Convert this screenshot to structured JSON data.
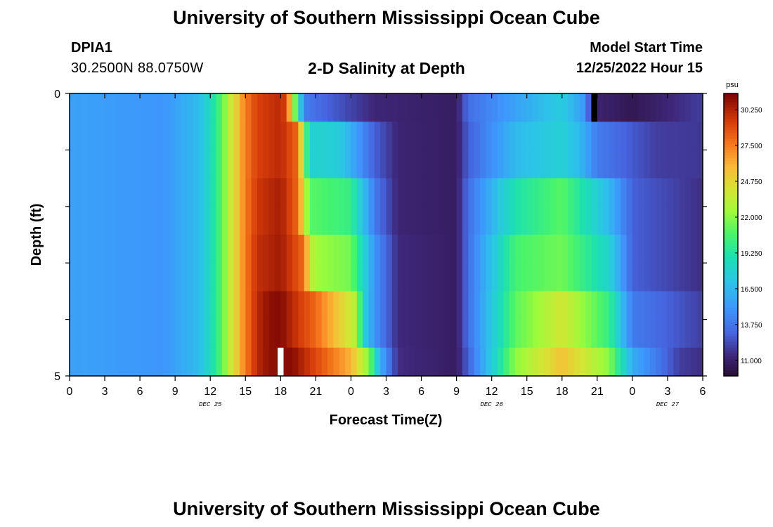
{
  "header": {
    "title": "University of Southern Mississippi Ocean Cube",
    "station_id": "DPIA1",
    "station_coords": "30.2500N  88.0750W",
    "subtitle": "2-D Salinity at Depth",
    "start_label": "Model Start Time",
    "start_value": "12/25/2022 Hour 15"
  },
  "footer": {
    "title": "University of Southern Mississippi Ocean Cube"
  },
  "chart_data": {
    "type": "heatmap",
    "title": "2-D Salinity at Depth",
    "xlabel": "Forecast Time(Z)",
    "ylabel": "Depth (ft)",
    "x_tick_labels": [
      "0",
      "3",
      "6",
      "9",
      "12",
      "15",
      "18",
      "21",
      "0",
      "3",
      "6",
      "9",
      "12",
      "15",
      "18",
      "21",
      "0",
      "3",
      "6"
    ],
    "x_day_labels": [
      "DEC 25",
      "DEC 26",
      "DEC 27"
    ],
    "x_range_hours": [
      0,
      54
    ],
    "y_tick_labels": [
      "0",
      "5"
    ],
    "ylim": [
      0,
      5
    ],
    "y_inverted": true,
    "colorbar": {
      "unit": "psu",
      "tick_labels": [
        "30.250",
        "27.500",
        "24.750",
        "22.000",
        "19.250",
        "16.500",
        "13.750",
        "11.000"
      ],
      "min": 9.8,
      "max": 31.5
    },
    "depth_layers_ft": [
      0.25,
      0.75,
      1.25,
      1.75,
      2.25,
      2.75,
      3.25,
      3.75,
      4.25,
      4.75
    ],
    "layer_groups": [
      {
        "rows": [
          0
        ],
        "anchors": [
          [
            0,
            15.5
          ],
          [
            8,
            15
          ],
          [
            11,
            16.6
          ],
          [
            12,
            18.5
          ],
          [
            13,
            21
          ],
          [
            14,
            24.5
          ],
          [
            15,
            27.5
          ],
          [
            16,
            29.2
          ],
          [
            18,
            30
          ],
          [
            18.5,
            29
          ],
          [
            19,
            24
          ],
          [
            19.5,
            19
          ],
          [
            20,
            14
          ],
          [
            22,
            13
          ],
          [
            26,
            11.3
          ],
          [
            33,
            10.8
          ],
          [
            34,
            13.5
          ],
          [
            38,
            15.5
          ],
          [
            42,
            17.5
          ],
          [
            44,
            15
          ],
          [
            44.5,
            11.2
          ],
          [
            48,
            10.5
          ],
          [
            52,
            11.5
          ],
          [
            54,
            12
          ]
        ]
      },
      {
        "rows": [
          1,
          2
        ],
        "anchors": [
          [
            0,
            15.5
          ],
          [
            8,
            15
          ],
          [
            11,
            16.6
          ],
          [
            12,
            18.5
          ],
          [
            13,
            21
          ],
          [
            14,
            24.5
          ],
          [
            15,
            27.5
          ],
          [
            16,
            29.2
          ],
          [
            18,
            30
          ],
          [
            19.5,
            28
          ],
          [
            20,
            22
          ],
          [
            20.5,
            18
          ],
          [
            23,
            17.5
          ],
          [
            26,
            13
          ],
          [
            28,
            11.2
          ],
          [
            33,
            10.8
          ],
          [
            34,
            13
          ],
          [
            38,
            16.5
          ],
          [
            42,
            17.8
          ],
          [
            43.5,
            16.5
          ],
          [
            45,
            14
          ],
          [
            50,
            12
          ],
          [
            54,
            11.8
          ]
        ]
      },
      {
        "rows": [
          3,
          4
        ],
        "anchors": [
          [
            0,
            15.5
          ],
          [
            8,
            15
          ],
          [
            11,
            16.6
          ],
          [
            12,
            18.5
          ],
          [
            13,
            21
          ],
          [
            14,
            24.5
          ],
          [
            15,
            27.5
          ],
          [
            16,
            29.5
          ],
          [
            18,
            30.5
          ],
          [
            19.5,
            28
          ],
          [
            20,
            24
          ],
          [
            20.5,
            21
          ],
          [
            24,
            20
          ],
          [
            26,
            14
          ],
          [
            28,
            11.2
          ],
          [
            33,
            10.8
          ],
          [
            34,
            13.5
          ],
          [
            38,
            19
          ],
          [
            42,
            21
          ],
          [
            46,
            16.5
          ],
          [
            48,
            13
          ],
          [
            54,
            11.5
          ]
        ]
      },
      {
        "rows": [
          5,
          6
        ],
        "anchors": [
          [
            0,
            15.5
          ],
          [
            8,
            15
          ],
          [
            11,
            16.6
          ],
          [
            12,
            18.5
          ],
          [
            13,
            21
          ],
          [
            14,
            24.5
          ],
          [
            15,
            27.5
          ],
          [
            16,
            29.8
          ],
          [
            18,
            30.6
          ],
          [
            20,
            28
          ],
          [
            20.5,
            24
          ],
          [
            21,
            22.5
          ],
          [
            24,
            21.5
          ],
          [
            26,
            15
          ],
          [
            28,
            11.4
          ],
          [
            33,
            10.8
          ],
          [
            34,
            13.5
          ],
          [
            38,
            20.5
          ],
          [
            42,
            21.5
          ],
          [
            46,
            18
          ],
          [
            48,
            13
          ],
          [
            54,
            11.5
          ]
        ]
      },
      {
        "rows": [
          7,
          8
        ],
        "anchors": [
          [
            0,
            15.5
          ],
          [
            8,
            15
          ],
          [
            11,
            16.6
          ],
          [
            12,
            18.5
          ],
          [
            13,
            21
          ],
          [
            14,
            24.5
          ],
          [
            15,
            27.5
          ],
          [
            16,
            30
          ],
          [
            17,
            31
          ],
          [
            18,
            31.3
          ],
          [
            19,
            30
          ],
          [
            21,
            28
          ],
          [
            24.5,
            23
          ],
          [
            25,
            18
          ],
          [
            26,
            15
          ],
          [
            28,
            11.4
          ],
          [
            33,
            10.8
          ],
          [
            34,
            13.5
          ],
          [
            38,
            21
          ],
          [
            42,
            24
          ],
          [
            46,
            20
          ],
          [
            48,
            14
          ],
          [
            54,
            12
          ]
        ]
      },
      {
        "rows": [
          9
        ],
        "anchors": [
          [
            0,
            15.5
          ],
          [
            8,
            15
          ],
          [
            11,
            16.6
          ],
          [
            12,
            18.5
          ],
          [
            13,
            21
          ],
          [
            14,
            24.5
          ],
          [
            15,
            27.5
          ],
          [
            16,
            30
          ],
          [
            17,
            31
          ],
          [
            19,
            31.2
          ],
          [
            20,
            30
          ],
          [
            22,
            28
          ],
          [
            24,
            26
          ],
          [
            25.5,
            22
          ],
          [
            26.5,
            16
          ],
          [
            28,
            11.5
          ],
          [
            33,
            10.8
          ],
          [
            34,
            13
          ],
          [
            38,
            22
          ],
          [
            42,
            25.5
          ],
          [
            46,
            22
          ],
          [
            48,
            16
          ],
          [
            52,
            12
          ],
          [
            54,
            11.5
          ]
        ]
      }
    ],
    "special_cells": [
      {
        "hour": 44.75,
        "row": 0,
        "color": "#000000"
      },
      {
        "hour": 18,
        "row": 9,
        "color": "#ffffff"
      }
    ]
  }
}
